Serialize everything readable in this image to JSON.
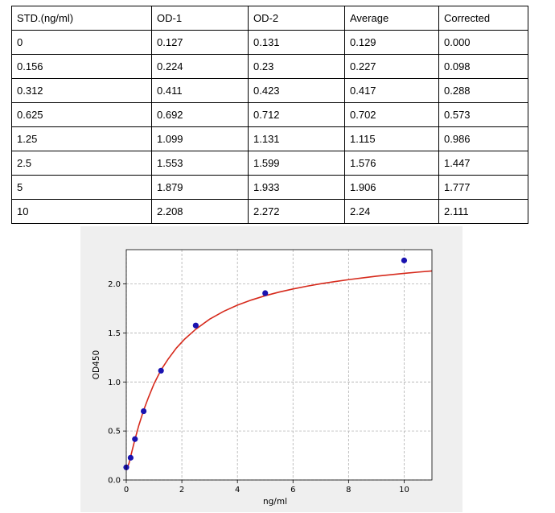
{
  "table": {
    "headers": [
      "STD.(ng/ml)",
      "OD-1",
      "OD-2",
      "Average",
      "Corrected"
    ],
    "rows": [
      [
        "0",
        "0.127",
        "0.131",
        "0.129",
        "0.000"
      ],
      [
        "0.156",
        "0.224",
        "0.23",
        "0.227",
        "0.098"
      ],
      [
        "0.312",
        "0.411",
        "0.423",
        "0.417",
        "0.288"
      ],
      [
        "0.625",
        "0.692",
        "0.712",
        "0.702",
        "0.573"
      ],
      [
        "1.25",
        "1.099",
        "1.131",
        "1.115",
        "0.986"
      ],
      [
        "2.5",
        "1.553",
        "1.599",
        "1.576",
        "1.447"
      ],
      [
        "5",
        "1.879",
        "1.933",
        "1.906",
        "1.777"
      ],
      [
        "10",
        "2.208",
        "2.272",
        "2.24",
        "2.111"
      ]
    ]
  },
  "chart_data": {
    "type": "scatter",
    "title": "",
    "xlabel": "ng/ml",
    "ylabel": "OD450",
    "xlim": [
      0,
      11
    ],
    "ylim": [
      0,
      2.35
    ],
    "xticks": [
      "0",
      "2",
      "4",
      "6",
      "8",
      "10"
    ],
    "yticks": [
      "0.0",
      "0.5",
      "1.0",
      "1.5",
      "2.0"
    ],
    "grid": true,
    "points": {
      "x": [
        0,
        0.156,
        0.312,
        0.625,
        1.25,
        2.5,
        5,
        10
      ],
      "y": [
        0.129,
        0.227,
        0.417,
        0.702,
        1.115,
        1.576,
        1.906,
        2.24
      ]
    },
    "fit_curve": {
      "x": [
        0,
        0.1,
        0.2,
        0.3,
        0.45,
        0.625,
        0.8,
        1.0,
        1.25,
        1.5,
        1.8,
        2.1,
        2.5,
        3.0,
        3.5,
        4.0,
        4.5,
        5.0,
        5.5,
        6.0,
        6.5,
        7.0,
        7.5,
        8.0,
        8.5,
        9.0,
        9.5,
        10.0,
        10.5,
        11.0
      ],
      "y": [
        0.1,
        0.172,
        0.288,
        0.401,
        0.556,
        0.712,
        0.844,
        0.982,
        1.122,
        1.231,
        1.345,
        1.437,
        1.538,
        1.641,
        1.72,
        1.784,
        1.836,
        1.88,
        1.917,
        1.949,
        1.977,
        2.002,
        2.024,
        2.044,
        2.062,
        2.079,
        2.094,
        2.108,
        2.121,
        2.133
      ]
    },
    "colors": {
      "points": "#1a13b0",
      "curve": "#d62a1c",
      "grid": "#b0b0b0",
      "background": "#efefef",
      "plot_area": "#ffffff"
    }
  }
}
